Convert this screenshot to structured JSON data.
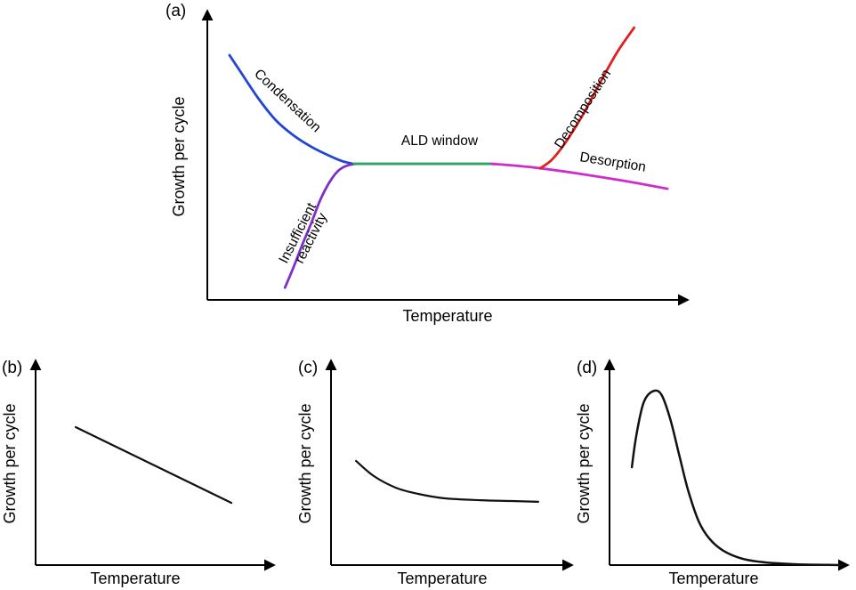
{
  "figure": {
    "background": "#ffffff",
    "axis_color": "#000000",
    "xlabel": "Temperature",
    "ylabel": "Growth per cycle"
  },
  "panels": {
    "a": {
      "tag": "(a)"
    },
    "b": {
      "tag": "(b)"
    },
    "c": {
      "tag": "(c)"
    },
    "d": {
      "tag": "(d)"
    }
  },
  "labels": {
    "condensation": "Condensation",
    "insufficient_line1": "Insufficient",
    "insufficient_line2": "reactivity",
    "ald_window": "ALD window",
    "decomposition": "Decomposition",
    "desorption": "Desorption"
  },
  "colors": {
    "condensation": "#2146d4",
    "insufficient_reactivity": "#7d2fc9",
    "ald_window": "#2aa45e",
    "decomposition": "#e31e1e",
    "desorption": "#cc2dcb",
    "schematic_black": "#111111"
  },
  "chart_data": [
    {
      "panel": "a",
      "type": "line",
      "title": "",
      "xlabel": "Temperature",
      "ylabel": "Growth per cycle",
      "schematic": true,
      "ticks": [],
      "legend": "labels drawn along curves",
      "series": [
        {
          "name": "Condensation",
          "color": "#2146d4",
          "width": 2.8,
          "points": [
            [
              0.046,
              0.854
            ],
            [
              0.068,
              0.798
            ],
            [
              0.105,
              0.705
            ],
            [
              0.142,
              0.627
            ],
            [
              0.179,
              0.574
            ],
            [
              0.216,
              0.534
            ],
            [
              0.253,
              0.503
            ],
            [
              0.28,
              0.484
            ],
            [
              0.303,
              0.475
            ]
          ]
        },
        {
          "name": "Insufficient reactivity",
          "color": "#7d2fc9",
          "width": 2.8,
          "points": [
            [
              0.161,
              0.043
            ],
            [
              0.179,
              0.115
            ],
            [
              0.197,
              0.193
            ],
            [
              0.216,
              0.27
            ],
            [
              0.234,
              0.348
            ],
            [
              0.253,
              0.41
            ],
            [
              0.271,
              0.45
            ],
            [
              0.29,
              0.469
            ],
            [
              0.308,
              0.475
            ]
          ]
        },
        {
          "name": "ALD window",
          "color": "#2aa45e",
          "width": 2.8,
          "points": [
            [
              0.304,
              0.475
            ],
            [
              0.589,
              0.475
            ]
          ]
        },
        {
          "name": "Desorption",
          "color": "#cc2dcb",
          "width": 2.8,
          "points": [
            [
              0.589,
              0.475
            ],
            [
              0.677,
              0.462
            ],
            [
              0.769,
              0.441
            ],
            [
              0.862,
              0.416
            ],
            [
              0.954,
              0.388
            ]
          ]
        },
        {
          "name": "Decomposition",
          "color": "#e31e1e",
          "width": 2.8,
          "points": [
            [
              0.69,
              0.459
            ],
            [
              0.715,
              0.49
            ],
            [
              0.745,
              0.555
            ],
            [
              0.78,
              0.65
            ],
            [
              0.815,
              0.76
            ],
            [
              0.85,
              0.865
            ],
            [
              0.885,
              0.95
            ]
          ]
        }
      ]
    },
    {
      "panel": "b",
      "type": "line",
      "title": "",
      "xlabel": "Temperature",
      "ylabel": "Growth per cycle",
      "schematic": true,
      "ticks": [],
      "series": [
        {
          "name": "linear decrease",
          "color": "#111111",
          "width": 2.2,
          "points": [
            [
              0.167,
              0.674
            ],
            [
              0.815,
              0.304
            ]
          ]
        }
      ]
    },
    {
      "panel": "c",
      "type": "line",
      "title": "",
      "xlabel": "Temperature",
      "ylabel": "Growth per cycle",
      "schematic": true,
      "ticks": [],
      "series": [
        {
          "name": "decay to plateau",
          "color": "#111111",
          "width": 2.2,
          "points": [
            [
              0.103,
              0.509
            ],
            [
              0.176,
              0.435
            ],
            [
              0.267,
              0.378
            ],
            [
              0.359,
              0.348
            ],
            [
              0.469,
              0.326
            ],
            [
              0.615,
              0.317
            ],
            [
              0.744,
              0.313
            ],
            [
              0.853,
              0.309
            ]
          ]
        }
      ]
    },
    {
      "panel": "d",
      "type": "line",
      "title": "",
      "xlabel": "Temperature",
      "ylabel": "Growth per cycle",
      "schematic": true,
      "ticks": [],
      "series": [
        {
          "name": "peak then decay",
          "color": "#111111",
          "width": 2.5,
          "points": [
            [
              0.093,
              0.478
            ],
            [
              0.111,
              0.63
            ],
            [
              0.141,
              0.791
            ],
            [
              0.178,
              0.848
            ],
            [
              0.215,
              0.835
            ],
            [
              0.252,
              0.717
            ],
            [
              0.289,
              0.543
            ],
            [
              0.326,
              0.37
            ],
            [
              0.37,
              0.217
            ],
            [
              0.415,
              0.13
            ],
            [
              0.474,
              0.07
            ],
            [
              0.556,
              0.03
            ],
            [
              0.648,
              0.013
            ],
            [
              0.778,
              0.004
            ],
            [
              0.907,
              0.001
            ],
            [
              0.963,
              0.0
            ]
          ]
        }
      ]
    }
  ]
}
